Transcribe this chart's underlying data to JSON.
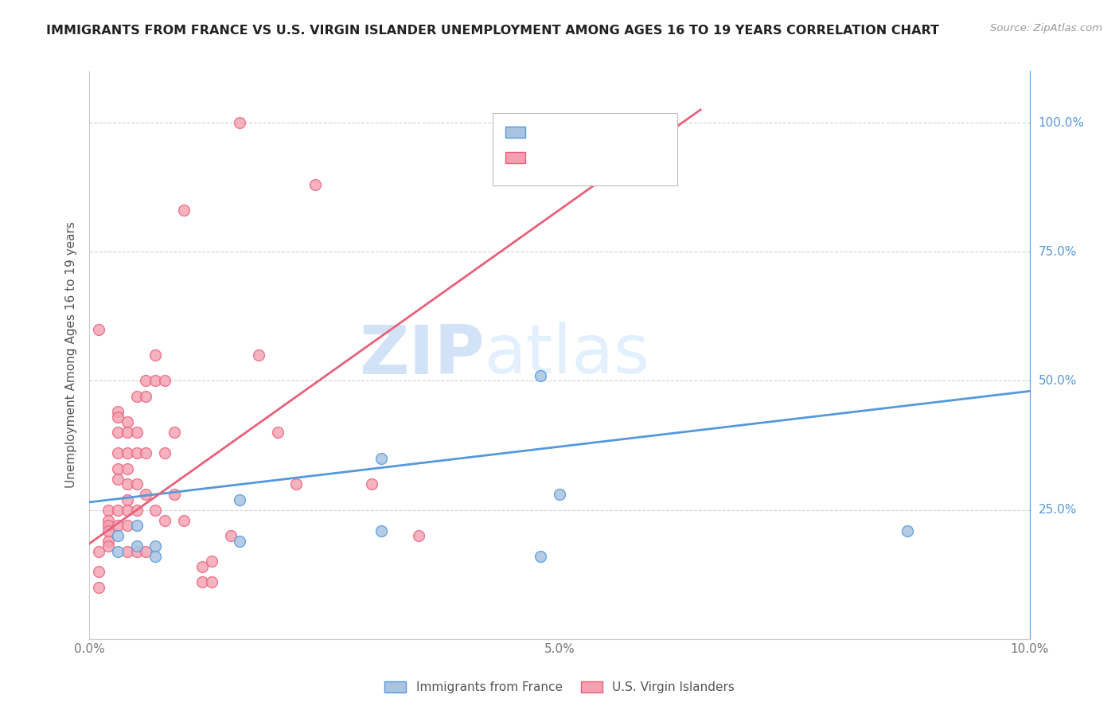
{
  "title": "IMMIGRANTS FROM FRANCE VS U.S. VIRGIN ISLANDER UNEMPLOYMENT AMONG AGES 16 TO 19 YEARS CORRELATION CHART",
  "source": "Source: ZipAtlas.com",
  "ylabel": "Unemployment Among Ages 16 to 19 years",
  "xlim": [
    0.0,
    0.1
  ],
  "ylim": [
    0.0,
    1.1
  ],
  "ytick_labels_right": [
    "100.0%",
    "75.0%",
    "50.0%",
    "25.0%"
  ],
  "ytick_positions_right": [
    1.0,
    0.75,
    0.5,
    0.25
  ],
  "legend_label_blue": "Immigrants from France",
  "legend_label_pink": "U.S. Virgin Islanders",
  "blue_scatter_x": [
    0.003,
    0.003,
    0.005,
    0.005,
    0.007,
    0.007,
    0.016,
    0.016,
    0.031,
    0.031,
    0.048,
    0.05,
    0.048,
    0.087
  ],
  "blue_scatter_y": [
    0.17,
    0.2,
    0.22,
    0.18,
    0.18,
    0.16,
    0.27,
    0.19,
    0.35,
    0.21,
    0.51,
    0.28,
    0.16,
    0.21
  ],
  "pink_scatter_x": [
    0.001,
    0.001,
    0.001,
    0.001,
    0.002,
    0.002,
    0.002,
    0.002,
    0.002,
    0.002,
    0.003,
    0.003,
    0.003,
    0.003,
    0.003,
    0.003,
    0.003,
    0.003,
    0.004,
    0.004,
    0.004,
    0.004,
    0.004,
    0.004,
    0.004,
    0.004,
    0.004,
    0.005,
    0.005,
    0.005,
    0.005,
    0.005,
    0.005,
    0.006,
    0.006,
    0.006,
    0.006,
    0.006,
    0.007,
    0.007,
    0.007,
    0.008,
    0.008,
    0.008,
    0.009,
    0.009,
    0.01,
    0.01,
    0.012,
    0.012,
    0.013,
    0.013,
    0.015,
    0.016,
    0.018,
    0.02,
    0.022,
    0.024,
    0.03,
    0.035
  ],
  "pink_scatter_y": [
    0.6,
    0.17,
    0.13,
    0.1,
    0.25,
    0.23,
    0.22,
    0.21,
    0.19,
    0.18,
    0.44,
    0.43,
    0.4,
    0.36,
    0.33,
    0.31,
    0.25,
    0.22,
    0.42,
    0.4,
    0.36,
    0.33,
    0.3,
    0.27,
    0.25,
    0.22,
    0.17,
    0.47,
    0.4,
    0.36,
    0.3,
    0.25,
    0.17,
    0.5,
    0.47,
    0.36,
    0.28,
    0.17,
    0.55,
    0.5,
    0.25,
    0.5,
    0.36,
    0.23,
    0.4,
    0.28,
    0.83,
    0.23,
    0.14,
    0.11,
    0.15,
    0.11,
    0.2,
    1.0,
    0.55,
    0.4,
    0.3,
    0.88,
    0.3,
    0.2
  ],
  "blue_line_x": [
    0.0,
    0.1
  ],
  "blue_line_y": [
    0.265,
    0.48
  ],
  "pink_line_x": [
    0.0,
    0.065
  ],
  "pink_line_y": [
    0.185,
    1.025
  ],
  "blue_dot_color": "#a8c4e0",
  "pink_dot_color": "#f4a0b0",
  "blue_line_color": "#5599dd",
  "pink_line_color": "#e8607a",
  "watermark_zip": "ZIP",
  "watermark_atlas": "atlas",
  "background_color": "#ffffff",
  "grid_color": "#cccccc"
}
